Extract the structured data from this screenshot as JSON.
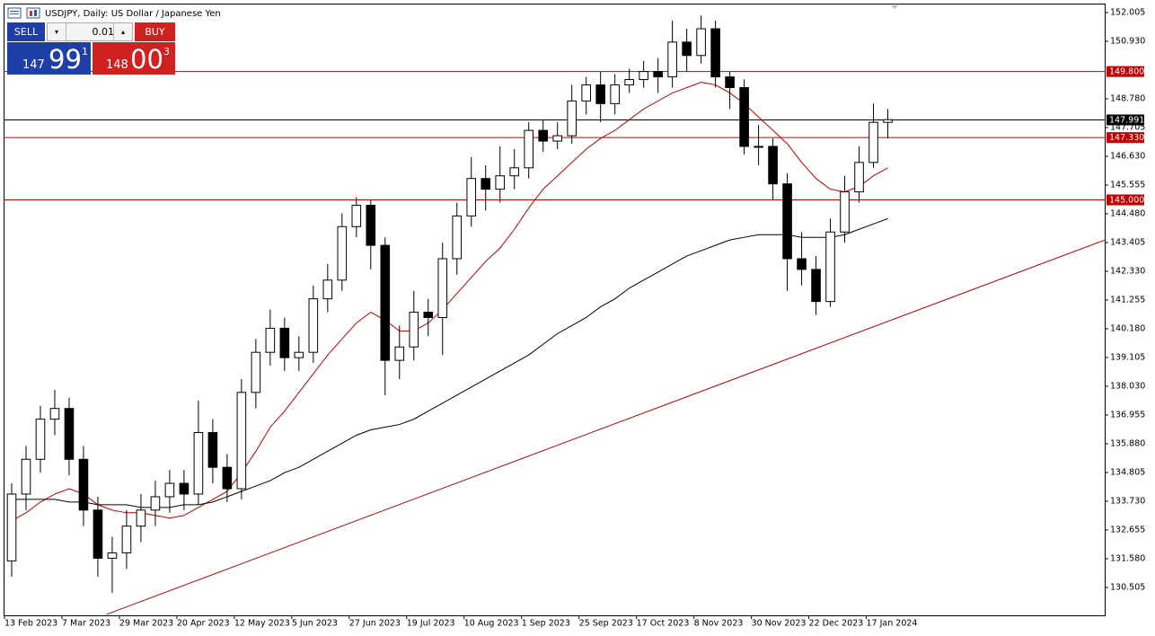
{
  "header": {
    "title": "USDJPY, Daily:  US Dollar / Japanese Yen"
  },
  "trade_panel": {
    "sell_label": "SELL",
    "buy_label": "BUY",
    "lot": "0.01",
    "sell_price": {
      "big": "147",
      "main": "99",
      "small": "1"
    },
    "buy_price": {
      "big": "148",
      "main": "00",
      "small": "3"
    }
  },
  "chart_data": {
    "type": "candlestick",
    "xlim": [
      0,
      76.6
    ],
    "ylim": [
      129.464,
      152.307
    ],
    "xticks": [
      {
        "value": 0,
        "label": "13 Feb 2023"
      },
      {
        "value": 4,
        "label": "7 Mar 2023"
      },
      {
        "value": 8,
        "label": "29 Mar 2023"
      },
      {
        "value": 12,
        "label": "20 Apr 2023"
      },
      {
        "value": 16,
        "label": "12 May 2023"
      },
      {
        "value": 20,
        "label": "5 Jun 2023"
      },
      {
        "value": 24,
        "label": "27 Jun 2023"
      },
      {
        "value": 28,
        "label": "19 Jul 2023"
      },
      {
        "value": 32,
        "label": "10 Aug 2023"
      },
      {
        "value": 36,
        "label": "1 Sep 2023"
      },
      {
        "value": 40,
        "label": "25 Sep 2023"
      },
      {
        "value": 44,
        "label": "17 Oct 2023"
      },
      {
        "value": 48,
        "label": "8 Nov 2023"
      },
      {
        "value": 52,
        "label": "30 Nov 2023"
      },
      {
        "value": 56,
        "label": "22 Dec 2023"
      },
      {
        "value": 60,
        "label": "17 Jan 2024"
      }
    ],
    "yticks": [
      152.005,
      {
        "value": 150.93,
        "label": "150.930"
      },
      {
        "value": 148.78,
        "label": "148.780"
      },
      147.705,
      {
        "value": 146.63,
        "label": "146.630"
      },
      145.555,
      {
        "value": 144.48,
        "label": "144.480"
      },
      143.405,
      {
        "value": 142.33,
        "label": "142.330"
      },
      141.255,
      {
        "value": 140.18,
        "label": "140.180"
      },
      139.105,
      {
        "value": 138.03,
        "label": "138.030"
      },
      136.955,
      {
        "value": 135.88,
        "label": "135.880"
      },
      134.805,
      {
        "value": 133.73,
        "label": "133.730"
      },
      132.655,
      {
        "value": 131.58,
        "label": "131.580"
      },
      130.505
    ],
    "open": [
      131.5,
      134.0,
      135.3,
      136.8,
      137.2,
      135.3,
      133.4,
      131.6,
      131.8,
      132.8,
      133.4,
      133.9,
      134.4,
      134.0,
      136.3,
      135.0,
      134.2,
      137.8,
      139.3,
      140.2,
      139.1,
      139.3,
      141.3,
      142.0,
      144.0,
      144.8,
      143.3,
      139.0,
      139.5,
      140.8,
      140.6,
      142.8,
      144.4,
      145.8,
      145.4,
      145.9,
      146.2,
      147.6,
      147.2,
      147.4,
      148.7,
      149.3,
      148.6,
      149.3,
      149.5,
      149.8,
      149.6,
      150.9,
      150.4,
      151.4,
      149.6,
      149.2,
      147.0,
      147.0,
      145.6,
      142.8,
      142.4,
      141.2,
      143.8,
      145.3,
      146.4,
      147.9
    ],
    "high": [
      134.4,
      135.8,
      137.3,
      137.9,
      137.6,
      135.8,
      133.9,
      132.4,
      133.4,
      134.0,
      134.5,
      134.9,
      134.9,
      137.5,
      136.8,
      135.5,
      138.3,
      139.8,
      140.9,
      140.6,
      139.9,
      141.8,
      142.6,
      144.5,
      145.1,
      145.0,
      143.6,
      140.3,
      141.6,
      141.3,
      143.4,
      144.9,
      146.6,
      146.3,
      147.0,
      146.9,
      147.9,
      148.0,
      147.9,
      149.3,
      149.6,
      149.8,
      149.7,
      149.9,
      150.2,
      150.3,
      151.7,
      151.4,
      151.9,
      151.7,
      149.8,
      149.5,
      147.8,
      147.3,
      146.0,
      143.8,
      142.9,
      144.3,
      145.9,
      147.0,
      148.6,
      148.4
    ],
    "low": [
      130.9,
      133.4,
      134.8,
      136.2,
      134.7,
      132.8,
      130.9,
      130.3,
      131.2,
      132.2,
      132.8,
      133.3,
      133.4,
      133.6,
      134.4,
      133.7,
      133.8,
      137.2,
      138.8,
      138.6,
      138.6,
      138.9,
      140.8,
      141.6,
      143.6,
      142.4,
      137.7,
      138.3,
      139.0,
      139.9,
      139.2,
      142.2,
      144.0,
      144.6,
      144.9,
      145.4,
      145.8,
      146.8,
      146.9,
      147.1,
      148.2,
      147.9,
      148.2,
      149.0,
      149.2,
      149.0,
      149.2,
      149.8,
      150.1,
      149.2,
      148.4,
      146.7,
      146.3,
      145.0,
      141.6,
      141.8,
      140.7,
      141.0,
      143.4,
      144.9,
      146.2,
      147.3
    ],
    "close": [
      134.0,
      135.3,
      136.8,
      137.2,
      135.3,
      133.4,
      131.6,
      131.8,
      132.8,
      133.4,
      133.9,
      134.4,
      134.0,
      136.3,
      135.0,
      134.2,
      137.8,
      139.3,
      140.2,
      139.1,
      139.3,
      141.3,
      142.0,
      144.0,
      144.8,
      143.3,
      139.0,
      139.5,
      140.8,
      140.6,
      142.8,
      144.4,
      145.8,
      145.4,
      145.9,
      146.2,
      147.6,
      147.2,
      147.4,
      148.7,
      149.3,
      148.6,
      149.3,
      149.5,
      149.8,
      149.6,
      150.9,
      150.4,
      151.4,
      149.6,
      149.2,
      147.0,
      147.0,
      145.6,
      142.8,
      142.4,
      141.2,
      143.8,
      145.3,
      146.4,
      147.9,
      148.0
    ],
    "moving_averages": [
      {
        "color": "#c00000",
        "values": [
          133.0,
          133.3,
          133.7,
          134.0,
          134.2,
          134.0,
          133.6,
          133.4,
          133.3,
          133.3,
          133.2,
          133.1,
          133.2,
          133.5,
          133.8,
          134.1,
          134.8,
          135.6,
          136.5,
          137.1,
          137.8,
          138.5,
          139.2,
          139.8,
          140.4,
          140.8,
          140.5,
          140.1,
          140.1,
          140.4,
          140.9,
          141.5,
          142.1,
          142.7,
          143.2,
          143.9,
          144.7,
          145.4,
          145.9,
          146.4,
          146.9,
          147.3,
          147.6,
          148.0,
          148.4,
          148.7,
          149.0,
          149.2,
          149.4,
          149.3,
          149.0,
          148.6,
          148.1,
          147.6,
          147.1,
          146.4,
          145.8,
          145.4,
          145.3,
          145.5,
          145.9,
          146.2
        ]
      },
      {
        "color": "#000000",
        "values": [
          133.8,
          133.8,
          133.8,
          133.8,
          133.7,
          133.7,
          133.6,
          133.6,
          133.6,
          133.5,
          133.5,
          133.5,
          133.6,
          133.6,
          133.7,
          133.9,
          134.1,
          134.3,
          134.5,
          134.8,
          135.0,
          135.3,
          135.6,
          135.9,
          136.2,
          136.4,
          136.5,
          136.6,
          136.8,
          137.1,
          137.4,
          137.7,
          138.0,
          138.3,
          138.6,
          138.9,
          139.2,
          139.6,
          140.0,
          140.3,
          140.6,
          141.0,
          141.3,
          141.7,
          142.0,
          142.3,
          142.6,
          142.9,
          143.1,
          143.3,
          143.5,
          143.6,
          143.7,
          143.7,
          143.7,
          143.6,
          143.6,
          143.6,
          143.7,
          143.9,
          144.1,
          144.3
        ]
      }
    ],
    "trendline": {
      "color": "#c00000",
      "x": [
        7.1,
        76.6
      ],
      "y": [
        129.5,
        143.5
      ]
    },
    "levels": [
      {
        "value": 149.8,
        "label": "149.800",
        "color": "#c00000"
      },
      {
        "value": 147.991,
        "label": "147.991",
        "color": "#000000"
      },
      {
        "value": 147.33,
        "label": "147.330",
        "color": "#c00000"
      },
      {
        "value": 145,
        "label": "145.000",
        "color": "#c00000"
      }
    ]
  }
}
